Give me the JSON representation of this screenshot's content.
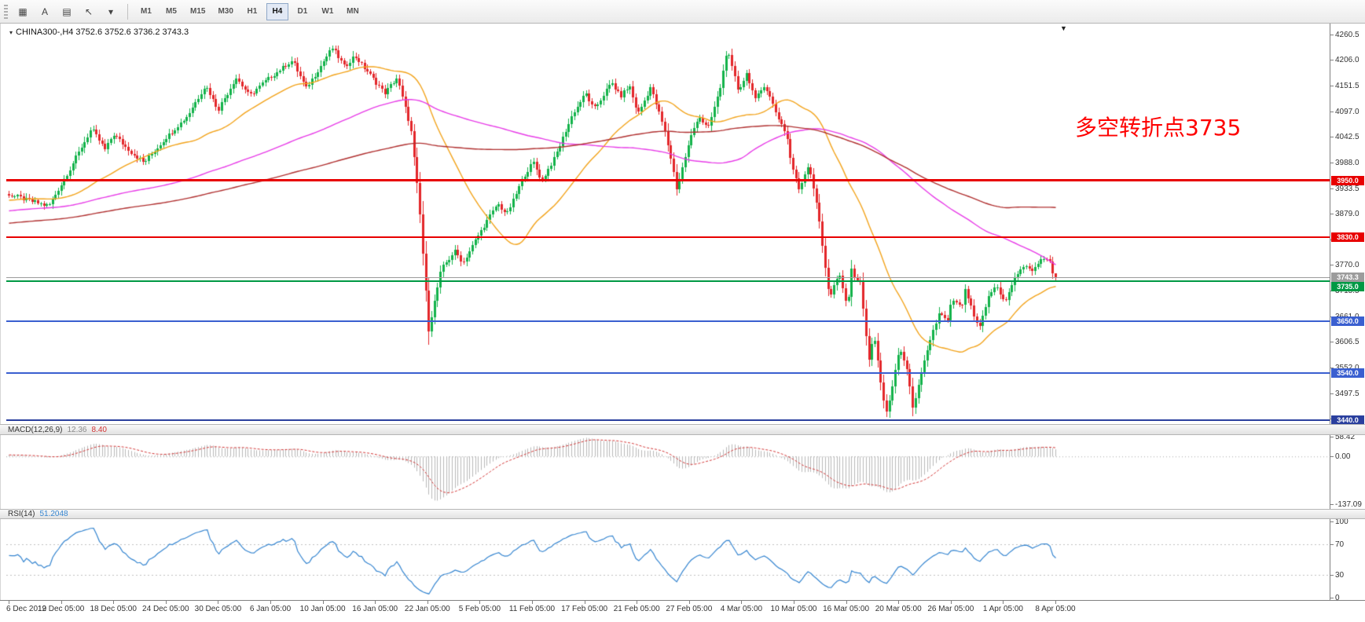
{
  "toolbar": {
    "icons": [
      {
        "name": "chart-grid-icon",
        "glyph": "▦"
      },
      {
        "name": "text-tool-icon",
        "glyph": "A"
      },
      {
        "name": "data-window-icon",
        "glyph": "▤"
      },
      {
        "name": "cursor-tool-icon",
        "glyph": "↖"
      },
      {
        "name": "dropdown-caret-icon",
        "glyph": "▾"
      }
    ],
    "timeframes": [
      {
        "label": "M1",
        "active": false
      },
      {
        "label": "M5",
        "active": false
      },
      {
        "label": "M15",
        "active": false
      },
      {
        "label": "M30",
        "active": false
      },
      {
        "label": "H1",
        "active": false
      },
      {
        "label": "H4",
        "active": true
      },
      {
        "label": "D1",
        "active": false
      },
      {
        "label": "W1",
        "active": false
      },
      {
        "label": "MN",
        "active": false
      }
    ]
  },
  "chart": {
    "title": "CHINA300-,H4 3752.6 3752.6 3736.2 3743.3",
    "menu_glyph": "▾",
    "shift_marker_glyph": "▼",
    "annotation": {
      "text": "多空转折点3735",
      "color": "#fe0000"
    }
  },
  "indicators": {
    "macd": {
      "label": "MACD(12,26,9)",
      "value_main": "12.36",
      "value_signal": "8.40",
      "axis_ticks": [
        58.42,
        0.0,
        -137.09
      ],
      "axis_tick_labels": [
        "58.42",
        "0.00",
        "-137.09"
      ]
    },
    "rsi": {
      "label": "RSI(14)",
      "value": "51.2048",
      "axis_ticks": [
        100,
        70,
        30,
        0
      ],
      "axis_tick_labels": [
        "100",
        "70",
        "30",
        "0"
      ],
      "levels": [
        70,
        30
      ]
    }
  },
  "chart_data": {
    "type": "candlestick",
    "symbol": "CHINA300-",
    "timeframe": "H4",
    "current_bar": {
      "open": 3752.6,
      "high": 3752.6,
      "low": 3736.2,
      "close": 3743.3
    },
    "num_bars": 360,
    "price_range": {
      "top": 4278,
      "bottom": 3432
    },
    "y_ticks": [
      "4260.5",
      "4206.0",
      "4151.5",
      "4097.0",
      "4042.5",
      "3988.0",
      "3933.5",
      "3879.0",
      "3824.5",
      "3770.0",
      "3715.5",
      "3661.0",
      "3606.5",
      "3552.0",
      "3497.5",
      "3443.0"
    ],
    "x_labels": [
      "6 Dec 2019",
      "12 Dec 05:00",
      "18 Dec 05:00",
      "24 Dec 05:00",
      "30 Dec 05:00",
      "6 Jan 05:00",
      "10 Jan 05:00",
      "16 Jan 05:00",
      "22 Jan 05:00",
      "5 Feb 05:00",
      "11 Feb 05:00",
      "17 Feb 05:00",
      "21 Feb 05:00",
      "27 Feb 05:00",
      "4 Mar 05:00",
      "10 Mar 05:00",
      "16 Mar 05:00",
      "20 Mar 05:00",
      "26 Mar 05:00",
      "1 Apr 05:00",
      "8 Apr 05:00"
    ],
    "price_path": [
      [
        0,
        3920
      ],
      [
        0.015,
        3910
      ],
      [
        0.038,
        3895
      ],
      [
        0.055,
        3960
      ],
      [
        0.079,
        4060
      ],
      [
        0.092,
        4015
      ],
      [
        0.1,
        4048
      ],
      [
        0.112,
        4020
      ],
      [
        0.129,
        3987
      ],
      [
        0.15,
        4040
      ],
      [
        0.17,
        4085
      ],
      [
        0.188,
        4152
      ],
      [
        0.2,
        4100
      ],
      [
        0.217,
        4168
      ],
      [
        0.23,
        4130
      ],
      [
        0.25,
        4170
      ],
      [
        0.271,
        4205
      ],
      [
        0.284,
        4145
      ],
      [
        0.3,
        4200
      ],
      [
        0.309,
        4232
      ],
      [
        0.321,
        4190
      ],
      [
        0.33,
        4215
      ],
      [
        0.345,
        4175
      ],
      [
        0.359,
        4135
      ],
      [
        0.371,
        4168
      ],
      [
        0.384,
        4060
      ],
      [
        0.392,
        3900
      ],
      [
        0.401,
        3632
      ],
      [
        0.413,
        3760
      ],
      [
        0.426,
        3800
      ],
      [
        0.434,
        3775
      ],
      [
        0.455,
        3858
      ],
      [
        0.467,
        3900
      ],
      [
        0.476,
        3878
      ],
      [
        0.492,
        3958
      ],
      [
        0.501,
        3990
      ],
      [
        0.509,
        3948
      ],
      [
        0.522,
        4000
      ],
      [
        0.538,
        4088
      ],
      [
        0.551,
        4135
      ],
      [
        0.559,
        4100
      ],
      [
        0.576,
        4158
      ],
      [
        0.584,
        4128
      ],
      [
        0.593,
        4150
      ],
      [
        0.601,
        4090
      ],
      [
        0.613,
        4148
      ],
      [
        0.626,
        4060
      ],
      [
        0.634,
        3980
      ],
      [
        0.638,
        3932
      ],
      [
        0.651,
        4040
      ],
      [
        0.659,
        4088
      ],
      [
        0.668,
        4058
      ],
      [
        0.68,
        4150
      ],
      [
        0.686,
        4228
      ],
      [
        0.697,
        4140
      ],
      [
        0.705,
        4178
      ],
      [
        0.713,
        4120
      ],
      [
        0.722,
        4155
      ],
      [
        0.734,
        4088
      ],
      [
        0.743,
        4048
      ],
      [
        0.747,
        3990
      ],
      [
        0.755,
        3930
      ],
      [
        0.764,
        3985
      ],
      [
        0.772,
        3900
      ],
      [
        0.776,
        3830
      ],
      [
        0.784,
        3700
      ],
      [
        0.793,
        3752
      ],
      [
        0.801,
        3680
      ],
      [
        0.805,
        3758
      ],
      [
        0.814,
        3728
      ],
      [
        0.818,
        3640
      ],
      [
        0.822,
        3560
      ],
      [
        0.826,
        3628
      ],
      [
        0.835,
        3490
      ],
      [
        0.839,
        3452
      ],
      [
        0.847,
        3548
      ],
      [
        0.851,
        3598
      ],
      [
        0.86,
        3528
      ],
      [
        0.864,
        3462
      ],
      [
        0.872,
        3540
      ],
      [
        0.881,
        3618
      ],
      [
        0.889,
        3668
      ],
      [
        0.897,
        3650
      ],
      [
        0.901,
        3698
      ],
      [
        0.91,
        3678
      ],
      [
        0.914,
        3718
      ],
      [
        0.922,
        3660
      ],
      [
        0.927,
        3632
      ],
      [
        0.935,
        3698
      ],
      [
        0.943,
        3728
      ],
      [
        0.952,
        3690
      ],
      [
        0.96,
        3738
      ],
      [
        0.968,
        3768
      ],
      [
        0.977,
        3758
      ],
      [
        0.985,
        3778
      ],
      [
        0.993,
        3788
      ],
      [
        0.997,
        3752.6
      ],
      [
        1,
        3743.3
      ]
    ],
    "hlines": [
      {
        "price": 3950.0,
        "label": "3950.0",
        "color": "#e80000",
        "thickness": 3
      },
      {
        "price": 3830.0,
        "label": "3830.0",
        "color": "#e80000",
        "thickness": 2
      },
      {
        "price": 3743.3,
        "label": "3743.3",
        "color": "#9c9c9c",
        "thickness": 1,
        "role": "current-price"
      },
      {
        "price": 3735.0,
        "label": "3735.0",
        "color": "#009944",
        "thickness": 2
      },
      {
        "price": 3650.0,
        "label": "3650.0",
        "color": "#3a5fd0",
        "thickness": 2
      },
      {
        "price": 3540.0,
        "label": "3540.0",
        "color": "#3a5fd0",
        "thickness": 2
      },
      {
        "price": 3440.0,
        "label": "3440.0",
        "color": "#2a3f9e",
        "thickness": 2
      }
    ],
    "moving_averages": [
      {
        "name": "ma-fast",
        "period": 34,
        "color": "#f2a31b"
      },
      {
        "name": "ma-mid",
        "period": 110,
        "color": "#e73ce7"
      },
      {
        "name": "ma-slow",
        "period": 200,
        "color": "#b03030"
      }
    ],
    "macd_range": {
      "top": 62,
      "bottom": -152
    },
    "colors": {
      "up": "#12b24a",
      "down": "#e3262a",
      "macd_hist": "#b9b9b9",
      "macd_signal": "#d23535",
      "rsi_line": "#3585d0",
      "level_line": "#c0c0c0"
    }
  }
}
